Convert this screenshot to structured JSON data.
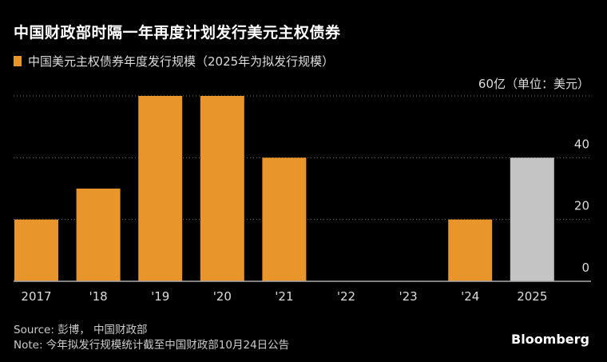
{
  "chart_data": {
    "type": "bar",
    "title": "中国财政部时隔一年再度计划发行美元主权债券",
    "legend": "中国美元主权债券年度发行规模（2025年为拟发行规模）",
    "legend_placement": "top-left",
    "categories": [
      "2017",
      "'18",
      "'19",
      "'20",
      "'21",
      "'22",
      "'23",
      "'24",
      "2025"
    ],
    "values": [
      20,
      30,
      60,
      60,
      40,
      0,
      0,
      20,
      40
    ],
    "bar_colors": [
      "#e8962b",
      "#e8962b",
      "#e8962b",
      "#e8962b",
      "#e8962b",
      "#e8962b",
      "#e8962b",
      "#e8962b",
      "#c4c4c4"
    ],
    "ylim": [
      0,
      60
    ],
    "yticks": [
      0,
      20,
      40,
      60
    ],
    "ytick_labels": [
      "0",
      "20",
      "40",
      "60亿（单位：美元）"
    ],
    "grid": true,
    "yaxis_position": "right"
  },
  "footer": {
    "source": "Source: 彭博， 中国财政部",
    "note": "Note: 今年拟发行规模统计截至中国财政部10月24日公告",
    "brand": "Bloomberg"
  }
}
